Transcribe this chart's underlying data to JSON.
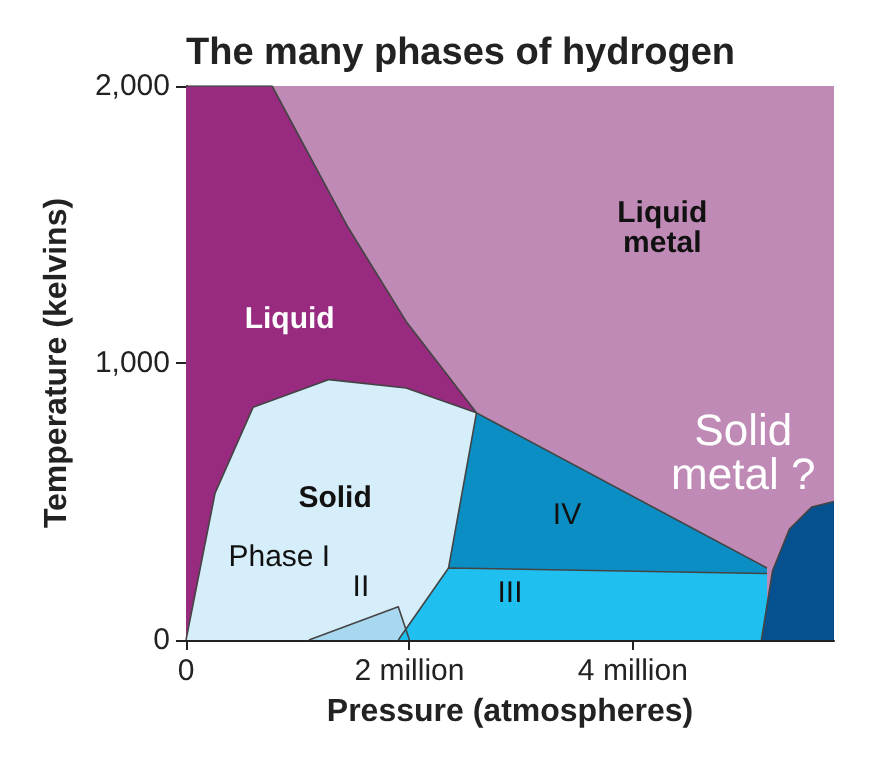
{
  "chart_data": {
    "type": "area",
    "title": "The many phases of hydrogen",
    "xlabel": "Pressure (atmospheres)",
    "ylabel": "Temperature (kelvins)",
    "xlim": [
      0,
      5800000
    ],
    "xticks": [
      0,
      {
        "value": 2000000,
        "label": "2 million"
      },
      {
        "value": 4000000,
        "label": "4 million"
      }
    ],
    "ylim": [
      0,
      2000
    ],
    "yticks": [
      0,
      {
        "value": 1000,
        "label": "1,000"
      },
      {
        "value": 2000,
        "label": "2,000"
      }
    ],
    "marker": "none",
    "series": [
      {
        "color": "#982a7f",
        "x": [
          0,
          770000,
          1450000,
          1970000,
          2600000
        ],
        "values": [
          2000,
          2000,
          1490,
          1150,
          820
        ]
      },
      {
        "color": "#d6eefa",
        "x": [
          0,
          260000,
          600000,
          1280000,
          1970000,
          2600000
        ],
        "values": [
          0,
          530,
          840,
          940,
          910,
          820
        ]
      },
      {
        "color": "#0a8ec4",
        "x": [
          2350000,
          2600000,
          5200000
        ],
        "values": [
          260,
          820,
          260
        ]
      },
      {
        "color": "#a8d8f0",
        "x": [
          1100000,
          1900000,
          2000000
        ],
        "values": [
          0,
          120,
          0
        ]
      },
      {
        "color": "#1fc0ef",
        "x": [
          1900000,
          2350000,
          5200000
        ],
        "values": [
          0,
          260,
          240
        ]
      },
      {
        "color": "#05508f",
        "x": [
          5150000,
          5250000,
          5400000,
          5600000,
          5800000
        ],
        "values": [
          0,
          250,
          400,
          480,
          500
        ]
      }
    ],
    "annotations": [
      "Liquid",
      "Liquid\nmetal",
      "Solid",
      "Phase I",
      "II",
      "III",
      "IV",
      "Solid\nmetal ?"
    ]
  }
}
